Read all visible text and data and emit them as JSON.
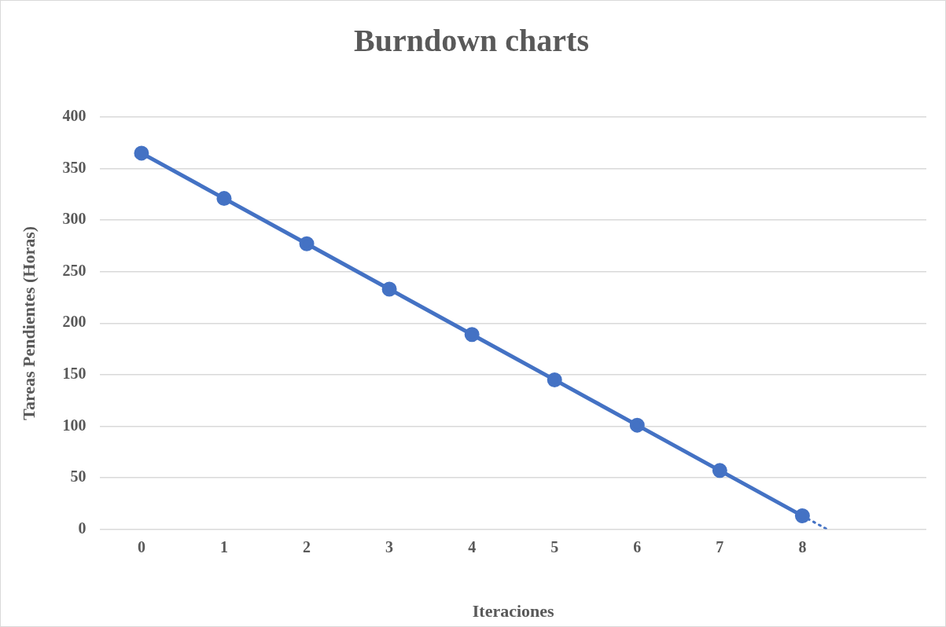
{
  "chart_data": {
    "type": "line",
    "title": "Burndown charts",
    "xlabel": "Iteraciones",
    "ylabel": "Tareas Pendientes (Horas)",
    "xlim": [
      -0.5,
      9.5
    ],
    "xticks": [
      0,
      1,
      2,
      3,
      4,
      5,
      6,
      7,
      8
    ],
    "ylim": [
      0,
      400
    ],
    "yticks": [
      0,
      50,
      100,
      150,
      200,
      250,
      300,
      350,
      400
    ],
    "grid": "y",
    "legend": false,
    "series": [
      {
        "color": "#4472c4",
        "x": [
          0,
          1,
          2,
          3,
          4,
          5,
          6,
          7,
          8
        ],
        "values": [
          365,
          321,
          277,
          233,
          189,
          145,
          101,
          57,
          13
        ],
        "marker": "circle",
        "line_style": "solid"
      },
      {
        "color": "#4472c4",
        "x": [
          8,
          8.3
        ],
        "values": [
          13,
          0
        ],
        "marker": "none",
        "line_style": "dotted"
      }
    ]
  }
}
